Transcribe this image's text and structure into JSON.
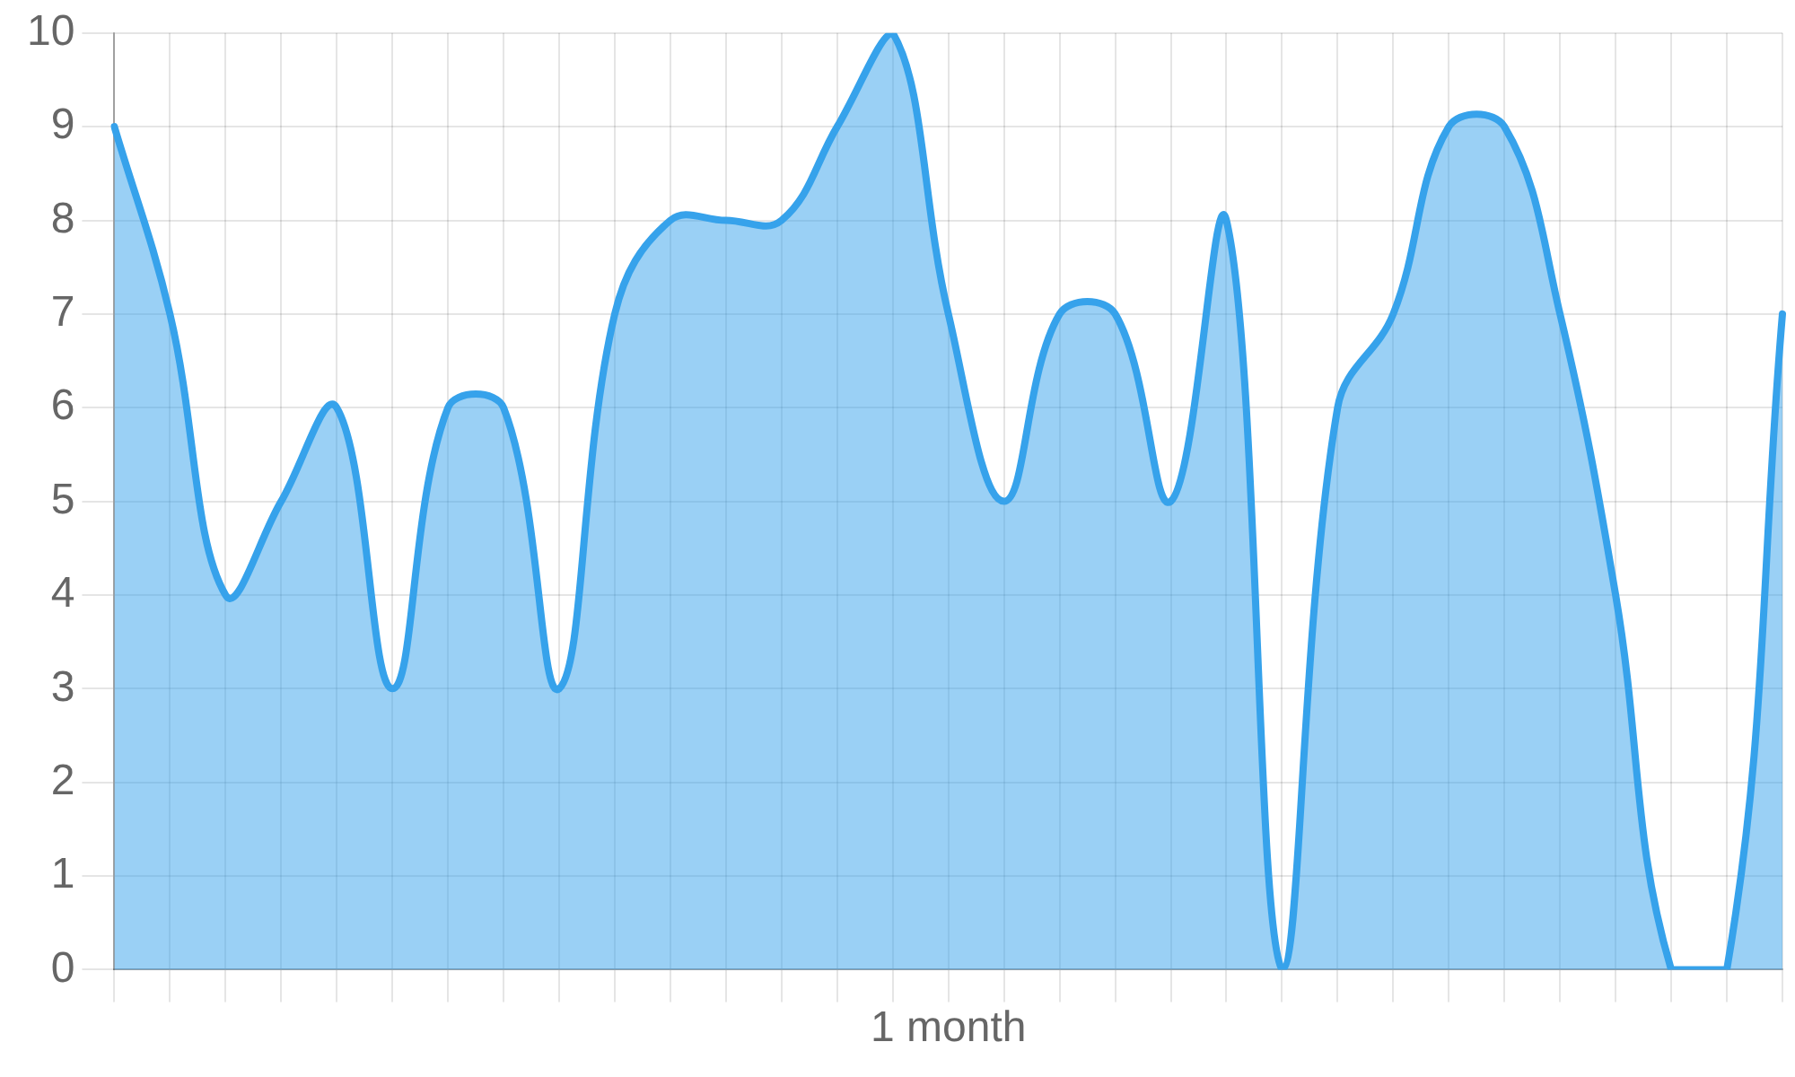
{
  "chart_data": {
    "type": "area",
    "xlabel": "1 month",
    "categories": [
      null,
      null,
      null,
      null,
      null,
      null,
      null,
      null,
      null,
      null,
      null,
      null,
      null,
      null,
      null,
      null,
      null,
      null,
      null,
      null,
      null,
      null,
      null,
      null,
      null,
      null,
      null,
      null,
      null,
      null,
      null
    ],
    "series": [
      {
        "color": "#36a2eb",
        "values": [
          9,
          7,
          4,
          5,
          6,
          3,
          6,
          6,
          3,
          7,
          8,
          8,
          8,
          9,
          10,
          7,
          5,
          7,
          7,
          5,
          8,
          0,
          6,
          7,
          9,
          9,
          7,
          4,
          0,
          0,
          7
        ]
      }
    ],
    "ylim": [
      0,
      10
    ],
    "yticks": [
      0,
      1,
      2,
      3,
      4,
      5,
      6,
      7,
      8,
      9,
      10
    ],
    "grid": true,
    "legend": false,
    "marker": "none",
    "line_style": "solid"
  }
}
